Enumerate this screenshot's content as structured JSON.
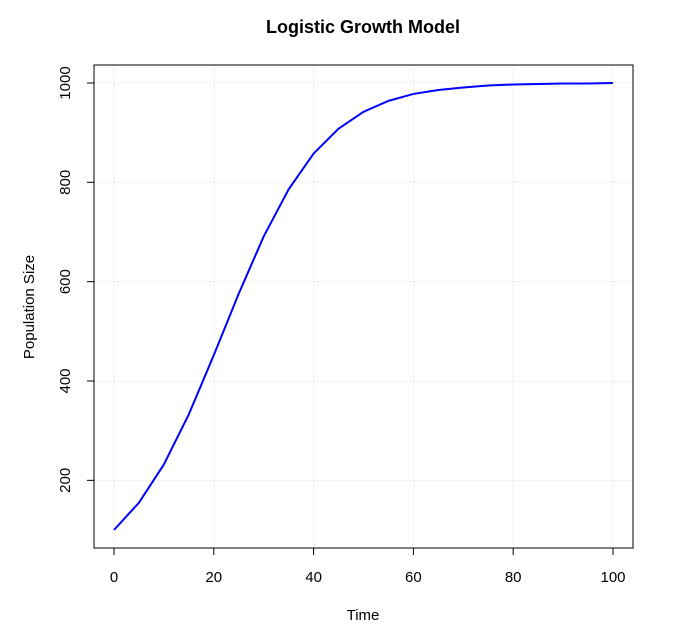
{
  "chart_data": {
    "type": "line",
    "title": "Logistic Growth Model",
    "xlabel": "Time",
    "ylabel": "Population Size",
    "xlim": [
      0,
      100
    ],
    "ylim": [
      100,
      1000
    ],
    "xticks": [
      0,
      20,
      40,
      60,
      80,
      100
    ],
    "yticks": [
      200,
      400,
      600,
      800,
      1000
    ],
    "grid": true,
    "series": [
      {
        "color": "#0000ff",
        "x": [
          0,
          5,
          10,
          15,
          20,
          25,
          30,
          35,
          40,
          45,
          50,
          55,
          60,
          65,
          70,
          75,
          80,
          85,
          90,
          95,
          100
        ],
        "y": [
          100,
          155,
          232,
          333,
          452,
          576,
          691,
          786,
          858,
          908,
          942,
          964,
          978,
          986,
          991,
          995,
          997,
          998,
          999,
          999,
          1000
        ]
      }
    ]
  }
}
